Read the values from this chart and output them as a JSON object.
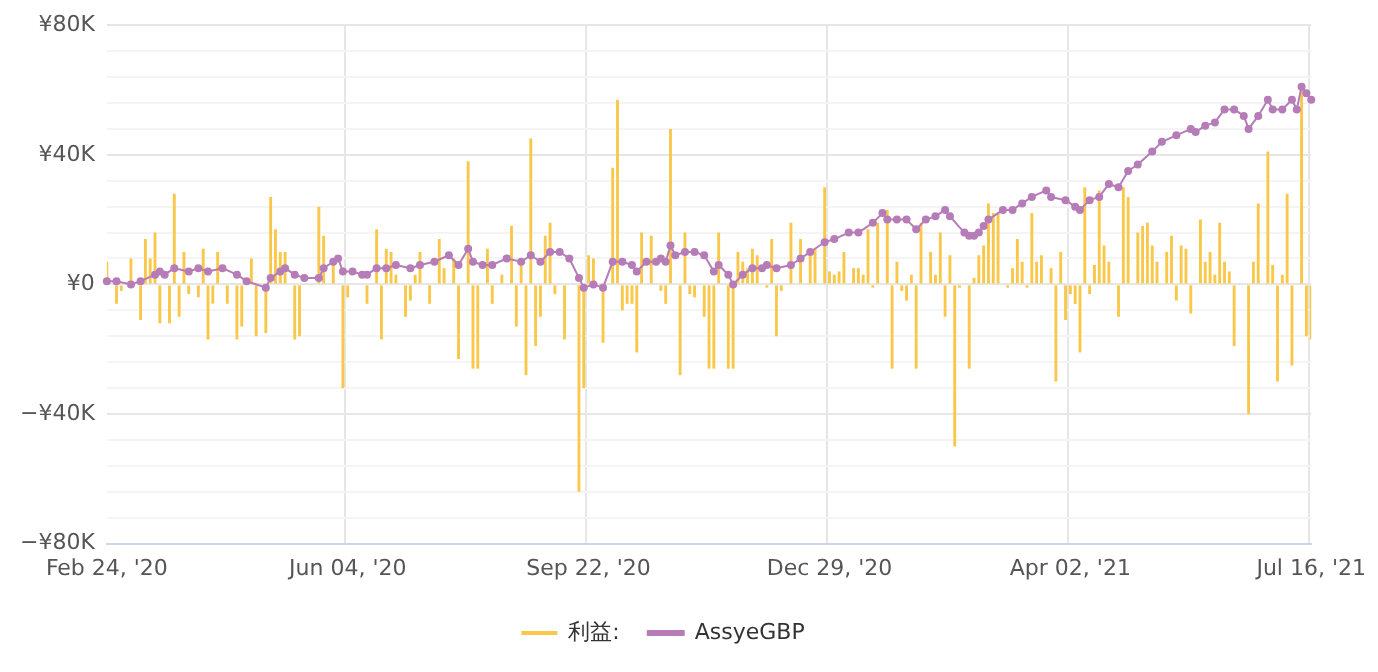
{
  "chart_data": {
    "type": "bar",
    "categories": [
      "Feb 24, '20",
      null,
      null,
      null,
      null,
      null,
      null,
      null,
      null,
      null,
      null,
      null,
      null,
      null,
      null,
      null,
      null,
      null,
      null,
      null,
      null,
      null,
      null,
      null,
      null,
      null,
      null,
      null,
      null,
      null,
      null,
      null,
      null,
      null,
      null,
      null,
      null,
      null,
      null,
      null,
      null,
      null,
      null,
      null,
      null,
      null,
      null,
      null,
      null,
      null,
      "Jun 04, '20",
      null,
      null,
      null,
      null,
      null,
      null,
      null,
      null,
      null,
      null,
      null,
      null,
      null,
      null,
      null,
      null,
      null,
      null,
      null,
      null,
      null,
      null,
      null,
      null,
      null,
      null,
      null,
      null,
      null,
      null,
      null,
      null,
      null,
      null,
      null,
      null,
      null,
      null,
      null,
      null,
      null,
      null,
      null,
      null,
      null,
      null,
      null,
      null,
      null,
      "Sep 22, '20",
      null,
      null,
      null,
      null,
      null,
      null,
      null,
      null,
      null,
      null,
      null,
      null,
      null,
      null,
      null,
      null,
      null,
      null,
      null,
      null,
      null,
      null,
      null,
      null,
      null,
      null,
      null,
      null,
      null,
      null,
      null,
      null,
      null,
      null,
      null,
      null,
      null,
      null,
      null,
      null,
      null,
      null,
      null,
      null,
      null,
      null,
      null,
      null,
      null,
      "Dec 29, '20",
      null,
      null,
      null,
      null,
      null,
      null,
      null,
      null,
      null,
      null,
      null,
      null,
      null,
      null,
      null,
      null,
      null,
      null,
      null,
      null,
      null,
      null,
      null,
      null,
      null,
      null,
      null,
      null,
      null,
      null,
      null,
      null,
      null,
      null,
      null,
      null,
      null,
      null,
      null,
      null,
      null,
      null,
      null,
      null,
      null,
      null,
      null,
      null,
      null,
      "Apr 02, '21",
      null,
      null,
      null,
      null,
      null,
      null,
      null,
      null,
      null,
      null,
      null,
      null,
      null,
      null,
      null,
      null,
      null,
      null,
      null,
      null,
      null,
      null,
      null,
      null,
      null,
      null,
      null,
      null,
      null,
      null,
      null,
      null,
      null,
      null,
      null,
      null,
      null,
      null,
      null,
      null,
      null,
      null,
      null,
      null,
      null,
      null,
      null,
      null,
      null,
      "Jul 16, '21"
    ],
    "series": [
      {
        "name": "利益:",
        "color": "#f9c84a",
        "values": [
          7,
          null,
          -6,
          -2,
          null,
          8,
          null,
          -11,
          14,
          8,
          16,
          -12,
          null,
          -12,
          28,
          -10,
          10,
          -3,
          null,
          -4,
          11,
          -17,
          -6,
          10,
          null,
          -6,
          null,
          -17,
          -13,
          null,
          8,
          -16,
          null,
          -15,
          27,
          17,
          10,
          10,
          null,
          -17,
          -16,
          null,
          null,
          null,
          24,
          15,
          null,
          7,
          null,
          -32,
          -4,
          null,
          null,
          null,
          -6,
          null,
          17,
          -17,
          11,
          10,
          3,
          null,
          -10,
          -5,
          3,
          10,
          null,
          -6,
          null,
          14,
          5,
          null,
          8,
          -23,
          null,
          38,
          -26,
          -26,
          null,
          11,
          -6,
          null,
          3,
          null,
          18,
          -13,
          6,
          -28,
          45,
          -19,
          -10,
          15,
          19,
          -3,
          null,
          -17,
          null,
          null,
          -64,
          -32,
          9,
          8,
          null,
          -18,
          null,
          36,
          57,
          -8,
          -6,
          -6,
          -21,
          16,
          null,
          15,
          null,
          -2,
          -6,
          48,
          null,
          -28,
          16,
          -3,
          -4,
          null,
          -10,
          -26,
          -26,
          16,
          null,
          -26,
          -26,
          10,
          7,
          5,
          11,
          9,
          null,
          -1,
          14,
          -16,
          -2,
          null,
          19,
          null,
          14,
          null,
          10,
          11,
          null,
          30,
          4,
          3,
          4,
          10,
          null,
          5,
          5,
          3,
          17,
          -1,
          19,
          null,
          23,
          -26,
          7,
          -2,
          -5,
          3,
          -26,
          19,
          null,
          10,
          3,
          16,
          -10,
          9,
          -50,
          -1,
          null,
          -26,
          2,
          9,
          12,
          25,
          22,
          22,
          null,
          -1,
          5,
          14,
          7,
          -1,
          22,
          7,
          9,
          null,
          5,
          -30,
          10,
          -11,
          -3,
          -6,
          -21,
          30,
          -3,
          6,
          29,
          12,
          7,
          null,
          -10,
          30,
          27,
          null,
          16,
          18,
          19,
          12,
          7,
          null,
          10,
          15,
          -5,
          12,
          11,
          -9,
          null,
          20,
          7,
          10,
          3,
          19,
          7,
          4,
          -19,
          null,
          null,
          -40,
          7,
          25,
          null,
          41,
          6,
          -30,
          3,
          28,
          -25,
          null,
          60,
          -16,
          -17
        ]
      },
      {
        "name": "AssyeGBP",
        "type": "line",
        "color": "#b67cb8",
        "marker": "circle",
        "line_style": "solid",
        "values": [
          1,
          null,
          1,
          null,
          null,
          0,
          null,
          1,
          null,
          null,
          3,
          4,
          3,
          null,
          5,
          null,
          null,
          4,
          null,
          5,
          null,
          4,
          null,
          null,
          5,
          null,
          null,
          3,
          null,
          1,
          null,
          null,
          null,
          -1,
          2,
          null,
          4,
          5,
          null,
          3,
          null,
          2,
          null,
          null,
          2,
          5,
          null,
          7,
          8,
          4,
          null,
          4,
          null,
          3,
          3,
          null,
          5,
          null,
          5,
          null,
          6,
          null,
          null,
          5,
          null,
          6,
          null,
          null,
          7,
          null,
          null,
          9,
          null,
          6,
          null,
          11,
          7,
          null,
          6,
          null,
          6,
          null,
          null,
          8,
          null,
          null,
          7,
          null,
          9,
          null,
          7,
          null,
          10,
          null,
          10,
          null,
          8,
          null,
          2,
          -1,
          null,
          0,
          null,
          -1,
          null,
          7,
          null,
          7,
          null,
          6,
          4,
          null,
          7,
          null,
          7,
          8,
          7,
          12,
          9,
          null,
          10,
          null,
          10,
          null,
          9,
          null,
          4,
          6,
          null,
          3,
          0,
          null,
          3,
          null,
          5,
          null,
          5,
          6,
          null,
          5,
          null,
          null,
          6,
          null,
          8,
          null,
          10,
          null,
          null,
          13,
          null,
          14,
          null,
          null,
          16,
          null,
          16,
          null,
          null,
          19,
          null,
          22,
          20,
          null,
          20,
          null,
          20,
          null,
          17,
          null,
          20,
          null,
          21,
          null,
          23,
          21,
          null,
          null,
          16,
          15,
          15,
          16,
          18,
          20,
          null,
          null,
          23,
          null,
          23,
          null,
          25,
          null,
          27,
          null,
          null,
          29,
          27,
          null,
          null,
          26,
          null,
          24,
          23,
          null,
          26,
          null,
          27,
          null,
          31,
          null,
          30,
          null,
          35,
          null,
          37,
          null,
          null,
          41,
          null,
          44,
          null,
          null,
          46,
          null,
          null,
          48,
          47,
          null,
          49,
          null,
          50,
          null,
          54,
          null,
          54,
          null,
          52,
          48,
          null,
          52,
          null,
          57,
          54,
          null,
          54,
          null,
          57,
          54,
          61,
          59,
          57
        ]
      }
    ],
    "ylim": [
      -80,
      80
    ],
    "yticks": [
      {
        "value": -80,
        "label": "−¥80K"
      },
      {
        "value": -72,
        "label": null
      },
      {
        "value": -64,
        "label": null
      },
      {
        "value": -56,
        "label": null
      },
      {
        "value": -48,
        "label": null
      },
      {
        "value": -40,
        "label": "−¥40K"
      },
      {
        "value": -32,
        "label": null
      },
      {
        "value": -24,
        "label": null
      },
      {
        "value": -16,
        "label": null
      },
      {
        "value": -8,
        "label": null
      },
      {
        "value": 0,
        "label": "¥0"
      },
      {
        "value": 8,
        "label": null
      },
      {
        "value": 16,
        "label": null
      },
      {
        "value": 24,
        "label": null
      },
      {
        "value": 32,
        "label": null
      },
      {
        "value": 40,
        "label": "¥40K"
      },
      {
        "value": 48,
        "label": null
      },
      {
        "value": 56,
        "label": null
      },
      {
        "value": 64,
        "label": null
      },
      {
        "value": 72,
        "label": null
      },
      {
        "value": 80,
        "label": "¥80K"
      }
    ],
    "grid": true,
    "legend": "bottom"
  }
}
